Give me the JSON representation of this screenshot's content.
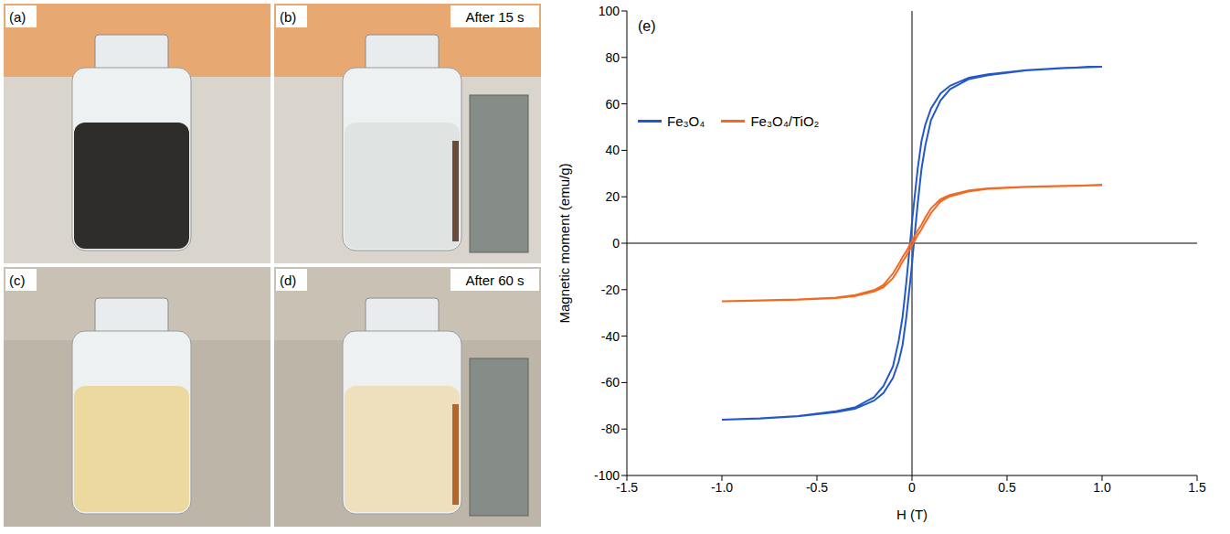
{
  "photos": [
    {
      "label": "(a)"
    },
    {
      "label": "(b)",
      "caption": "After 15 s"
    },
    {
      "label": "(c)"
    },
    {
      "label": "(d)",
      "caption": "After 60 s"
    }
  ],
  "chart_data": {
    "type": "line",
    "panel": "(e)",
    "x_label": "H (T)",
    "y_label": "Magnetic moment (emu/g)",
    "xlim": [
      -1.5,
      1.5
    ],
    "xticks": [
      -1.5,
      {
        "value": -1,
        "label": "-1.0"
      },
      -0.5,
      0,
      0.5,
      {
        "value": 1,
        "label": "1.0"
      },
      1.5
    ],
    "ylim": [
      -100,
      100
    ],
    "yticks": [
      -100,
      -80,
      -60,
      -40,
      -20,
      0,
      20,
      40,
      60,
      80,
      100
    ],
    "grid": false,
    "legend": "upper left",
    "series": [
      {
        "name": "Fe₃O₄",
        "color": "#2458c8",
        "x": [
          -1,
          -0.8,
          -0.6,
          -0.4,
          -0.3,
          -0.2,
          -0.15,
          -0.1,
          -0.07,
          -0.05,
          -0.03,
          -0.01,
          0,
          0.01,
          0.03,
          0.05,
          0.07,
          0.1,
          0.15,
          0.2,
          0.3,
          0.4,
          0.6,
          0.8,
          1,
          0.8,
          0.6,
          0.4,
          0.3,
          0.2,
          0.15,
          0.1,
          0.07,
          0.05,
          0.03,
          0.01,
          0,
          -0.01,
          -0.03,
          -0.05,
          -0.07,
          -0.1,
          -0.15,
          -0.2,
          -0.3,
          -0.4,
          -0.6,
          -0.8,
          -1
        ],
        "values": [
          -76,
          -75.5,
          -74.5,
          -72.7,
          -71.3,
          -67.8,
          -64.5,
          -58,
          -51,
          -44,
          -32,
          -17,
          -9,
          0,
          17,
          32,
          42,
          53,
          61.5,
          66.3,
          70.7,
          72.3,
          74.4,
          75.4,
          76,
          75.5,
          74.5,
          72.7,
          71.3,
          67.8,
          64.5,
          58,
          51,
          44,
          32,
          17,
          9,
          0,
          -17,
          -32,
          -42,
          -53,
          -61.5,
          -66.3,
          -70.7,
          -72.3,
          -74.4,
          -75.4,
          -76
        ]
      },
      {
        "name": "Fe₃O₄/TiO₂",
        "color": "#f26a21",
        "x": [
          -1,
          -0.8,
          -0.6,
          -0.4,
          -0.3,
          -0.2,
          -0.15,
          -0.1,
          -0.07,
          -0.05,
          -0.03,
          -0.01,
          0,
          0.01,
          0.03,
          0.05,
          0.07,
          0.1,
          0.15,
          0.2,
          0.3,
          0.4,
          0.6,
          0.8,
          1,
          0.8,
          0.6,
          0.4,
          0.3,
          0.2,
          0.15,
          0.1,
          0.07,
          0.05,
          0.03,
          0.01,
          0,
          -0.01,
          -0.03,
          -0.05,
          -0.07,
          -0.1,
          -0.15,
          -0.2,
          -0.3,
          -0.4,
          -0.6,
          -0.8,
          -1
        ],
        "values": [
          -25,
          -24.7,
          -24.3,
          -23.6,
          -22.7,
          -20.8,
          -19,
          -15,
          -11,
          -8,
          -5.5,
          -2.5,
          -1,
          0.5,
          3.5,
          6,
          9,
          13,
          18,
          20.2,
          22.3,
          23.4,
          24.2,
          24.6,
          25,
          24.7,
          24.3,
          23.6,
          22.7,
          20.8,
          19,
          15,
          11,
          8,
          5.5,
          2.5,
          1,
          -0.5,
          -3.5,
          -6,
          -9,
          -13,
          -18,
          -20.2,
          -22.3,
          -23.4,
          -24.2,
          -24.6,
          -25
        ]
      }
    ]
  }
}
